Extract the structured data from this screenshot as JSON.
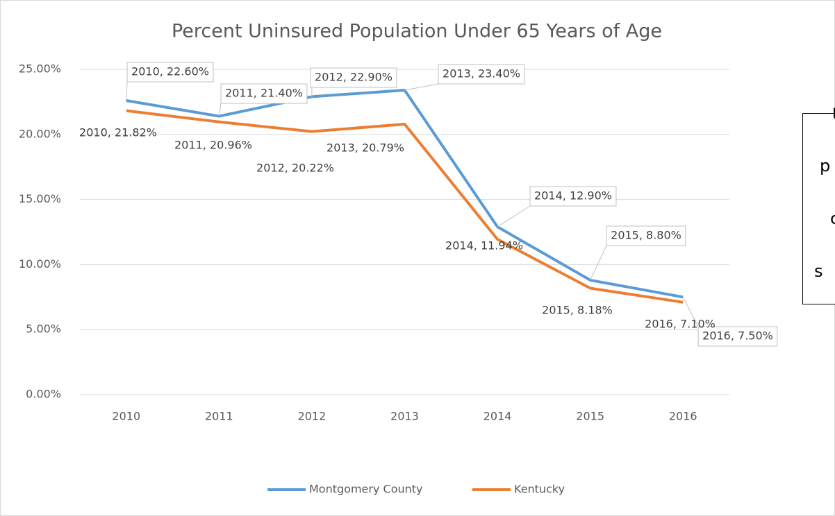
{
  "chart_data": {
    "type": "line",
    "title": "Percent Uninsured Population Under 65 Years of Age",
    "categories": [
      "2010",
      "2011",
      "2012",
      "2013",
      "2014",
      "2015",
      "2016"
    ],
    "series": [
      {
        "name": "Montgomery County",
        "color": "#5b9bd5",
        "values": [
          22.6,
          21.4,
          22.9,
          23.4,
          12.9,
          8.8,
          7.5
        ],
        "value_labels": [
          "2010, 22.60%",
          "2011, 21.40%",
          "2012, 22.90%",
          "2013, 23.40%",
          "2014, 12.90%",
          "2015, 8.80%",
          "2016, 7.50%"
        ]
      },
      {
        "name": "Kentucky",
        "color": "#ed7d31",
        "values": [
          21.82,
          20.96,
          20.22,
          20.79,
          11.94,
          8.18,
          7.1
        ],
        "value_labels": [
          "2010, 21.82%",
          "2011, 20.96%",
          "2012, 20.22%",
          "2013, 20.79%",
          "2014, 11.94%",
          "2015, 8.18%",
          "2016, 7.10%"
        ]
      }
    ],
    "ylim": [
      0,
      25
    ],
    "yticks": [
      {
        "value": 0,
        "label": "0.00%"
      },
      {
        "value": 5,
        "label": "5.00%"
      },
      {
        "value": 10,
        "label": "10.00%"
      },
      {
        "value": 15,
        "label": "15.00%"
      },
      {
        "value": 20,
        "label": "20.00%"
      },
      {
        "value": 25,
        "label": "25.00%"
      }
    ],
    "grid": true,
    "legend": "bottom",
    "text_box": [
      "U",
      "p",
      "c",
      "s"
    ]
  }
}
